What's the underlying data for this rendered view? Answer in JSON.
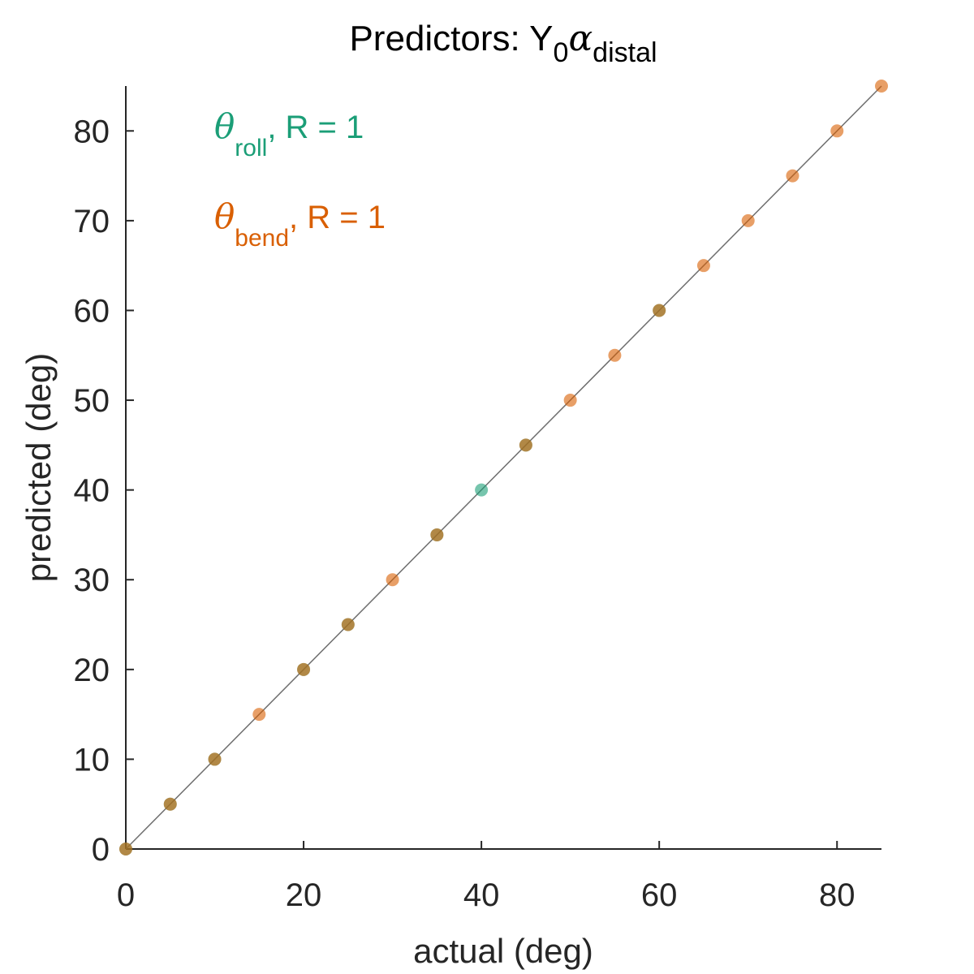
{
  "chart_data": {
    "type": "scatter",
    "title": {
      "prefix": "Predictors: Y",
      "sub_0": "0",
      "alpha": "α",
      "sub_distal": "distal"
    },
    "xlabel": "actual (deg)",
    "ylabel": "predicted (deg)",
    "xlim": [
      0,
      85
    ],
    "ylim": [
      0,
      85
    ],
    "xticks": [
      0,
      20,
      40,
      60,
      80
    ],
    "yticks": [
      0,
      10,
      20,
      30,
      40,
      50,
      60,
      70,
      80
    ],
    "grid": false,
    "reference_line": "identity (y = x)",
    "annotations": [
      {
        "symbol": "θ",
        "sub": "roll",
        "suffix": ", R = 1",
        "color": "#1b9e77"
      },
      {
        "symbol": "θ",
        "sub": "bend",
        "suffix": ", R = 1",
        "color": "#d95f02"
      }
    ],
    "series": [
      {
        "color": "#1b9e77",
        "points": [
          [
            0,
            0
          ],
          [
            5,
            5
          ],
          [
            10,
            10
          ],
          [
            20,
            20
          ],
          [
            25,
            25
          ],
          [
            35,
            35
          ],
          [
            40,
            40
          ],
          [
            45,
            45
          ],
          [
            60,
            60
          ]
        ]
      },
      {
        "color": "#d95f02",
        "points": [
          [
            0,
            0
          ],
          [
            5,
            5
          ],
          [
            10,
            10
          ],
          [
            15,
            15
          ],
          [
            20,
            20
          ],
          [
            25,
            25
          ],
          [
            30,
            30
          ],
          [
            35,
            35
          ],
          [
            45,
            45
          ],
          [
            50,
            50
          ],
          [
            55,
            55
          ],
          [
            60,
            60
          ],
          [
            65,
            65
          ],
          [
            70,
            70
          ],
          [
            75,
            75
          ],
          [
            80,
            80
          ],
          [
            85,
            85
          ]
        ]
      }
    ]
  }
}
